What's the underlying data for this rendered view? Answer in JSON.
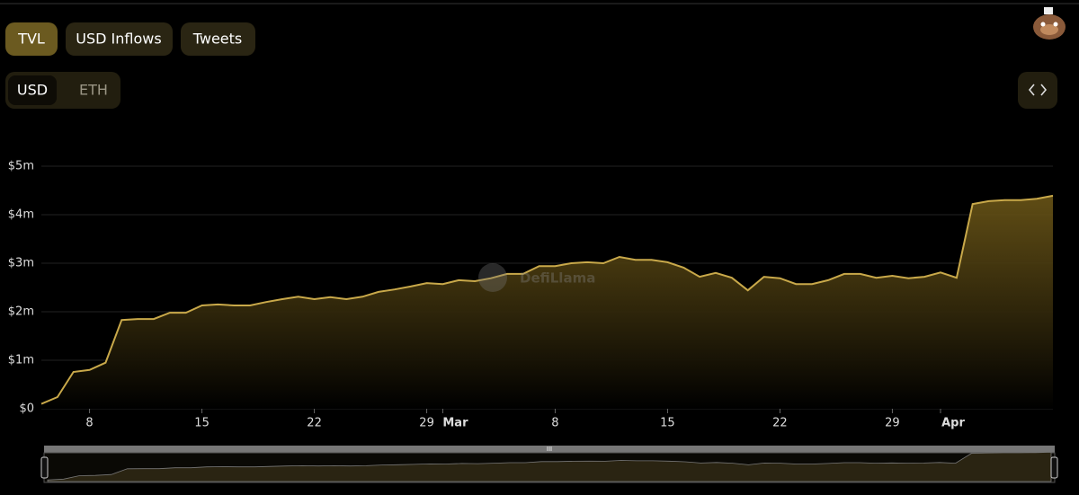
{
  "tabs": [
    "TVL",
    "USD Inflows",
    "Tweets"
  ],
  "denominations": [
    "USD",
    "ETH"
  ],
  "watermark": "DefiLlama",
  "chart_data": {
    "type": "area",
    "categories": [
      null,
      null,
      null,
      "8",
      null,
      null,
      null,
      null,
      null,
      null,
      "15",
      null,
      null,
      null,
      null,
      null,
      null,
      "22",
      null,
      null,
      null,
      null,
      null,
      null,
      "29",
      "Mar",
      null,
      null,
      null,
      null,
      null,
      null,
      "8",
      null,
      null,
      null,
      null,
      null,
      null,
      "15",
      null,
      null,
      null,
      null,
      null,
      null,
      "22",
      null,
      null,
      null,
      null,
      null,
      null,
      "29",
      null,
      null,
      "Apr",
      null,
      null,
      null,
      null,
      null,
      null,
      null
    ],
    "values": [
      0.1,
      0.24,
      0.76,
      0.8,
      0.95,
      1.83,
      1.85,
      1.85,
      1.98,
      1.98,
      2.13,
      2.15,
      2.13,
      2.13,
      2.2,
      2.26,
      2.31,
      2.26,
      2.3,
      2.26,
      2.31,
      2.41,
      2.46,
      2.52,
      2.59,
      2.57,
      2.65,
      2.63,
      2.69,
      2.78,
      2.78,
      2.94,
      2.94,
      3.0,
      3.02,
      3.0,
      3.13,
      3.07,
      3.07,
      3.02,
      2.91,
      2.72,
      2.8,
      2.7,
      2.44,
      2.72,
      2.69,
      2.57,
      2.57,
      2.65,
      2.78,
      2.78,
      2.7,
      2.74,
      2.69,
      2.72,
      2.81,
      2.7,
      4.22,
      4.28,
      4.3,
      4.3,
      4.33,
      4.39
    ],
    "color": "#c9a94a",
    "ylim": [
      0,
      5
    ],
    "yticks": [
      {
        "value": 0,
        "label": "$0"
      },
      {
        "value": 1,
        "label": "$1m"
      },
      {
        "value": 2,
        "label": "$2m"
      },
      {
        "value": 3,
        "label": "$3m"
      },
      {
        "value": 4,
        "label": "$4m"
      },
      {
        "value": 5,
        "label": "$5m"
      }
    ],
    "grid": true
  }
}
